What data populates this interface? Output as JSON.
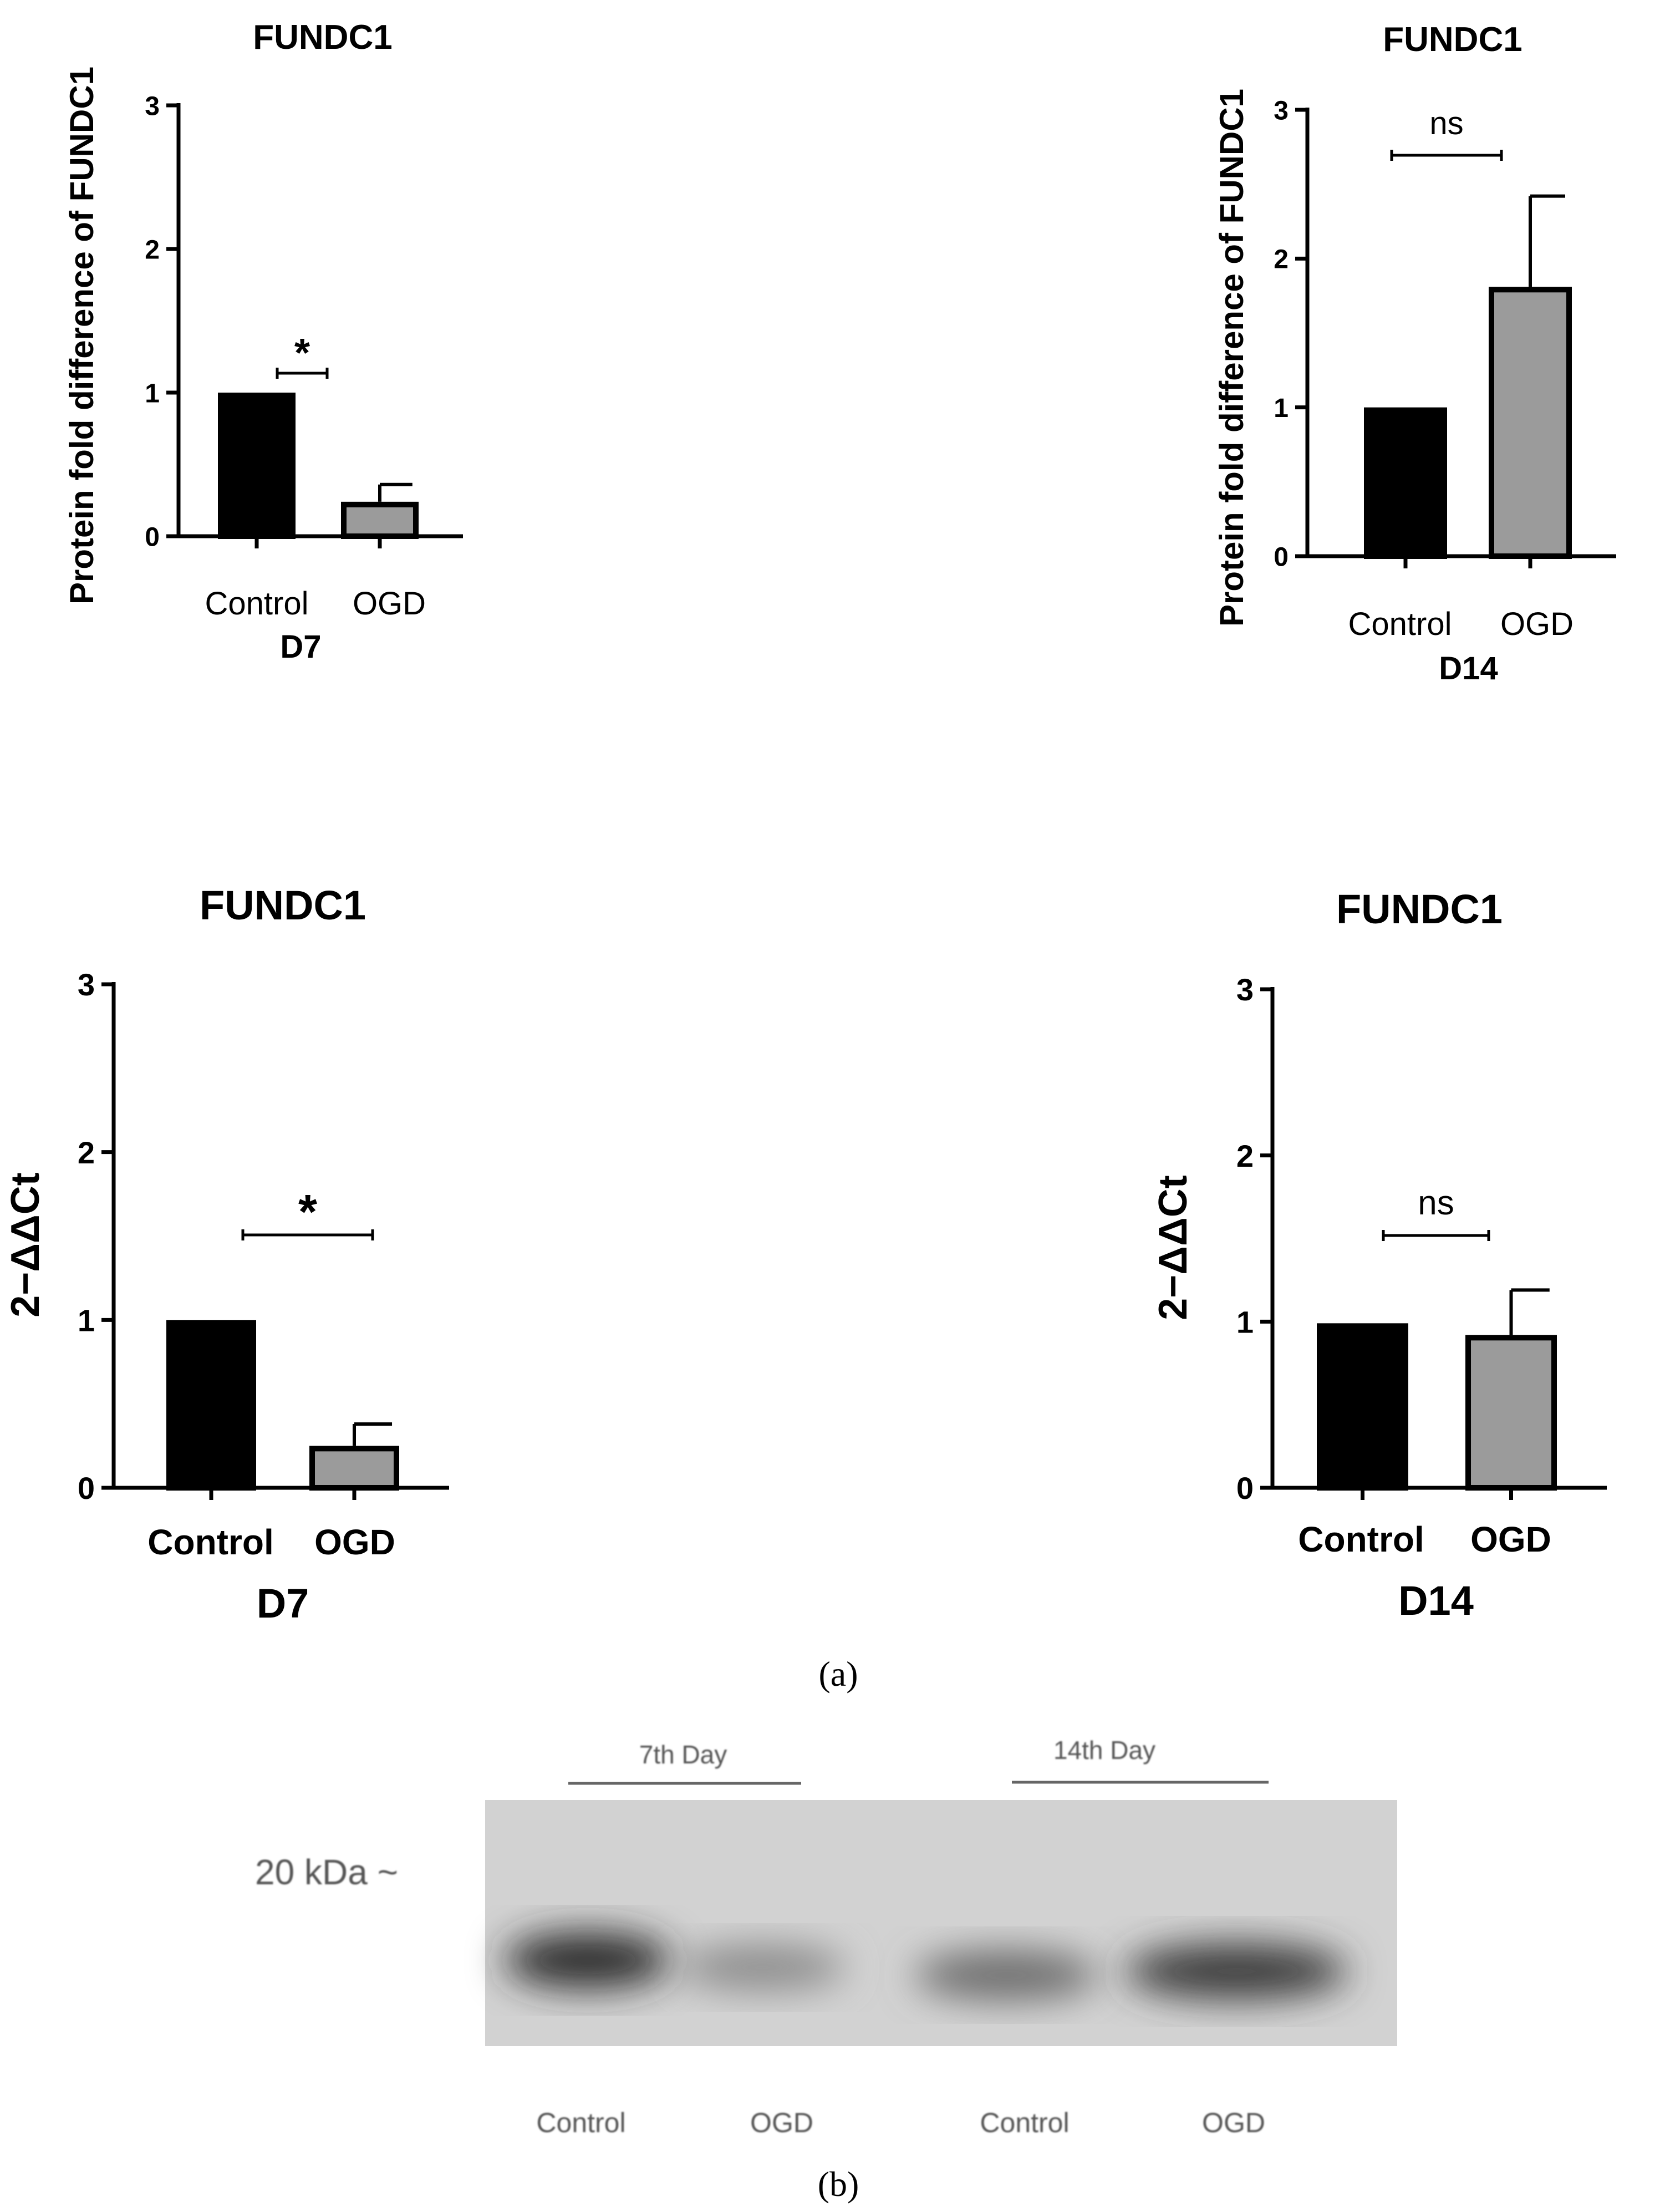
{
  "chart_data": [
    {
      "type": "bar",
      "title": "FUNDC1",
      "ylabel": "Protein fold difference of FUNDC1",
      "xlabel": "D7",
      "categories": [
        "Control",
        "OGD"
      ],
      "values": [
        1.0,
        0.24
      ],
      "error_upper": [
        0.0,
        0.36
      ],
      "ylim": [
        0,
        3
      ],
      "yticks": [
        "0",
        "1",
        "2",
        "3"
      ],
      "bar_colors": [
        "#000000",
        "#9b9b9b"
      ],
      "significance": "*"
    },
    {
      "type": "bar",
      "title": "FUNDC1",
      "ylabel": "Protein fold difference of FUNDC1",
      "xlabel": "D14",
      "categories": [
        "Control",
        "OGD"
      ],
      "values": [
        1.0,
        1.81
      ],
      "error_upper": [
        0.0,
        2.42
      ],
      "ylim": [
        0,
        3
      ],
      "yticks": [
        "0",
        "1",
        "2",
        "3"
      ],
      "bar_colors": [
        "#000000",
        "#9b9b9b"
      ],
      "significance": "ns"
    },
    {
      "type": "bar",
      "title": "FUNDC1",
      "ylabel": "2−ΔΔCt",
      "xlabel": "D7",
      "categories": [
        "Control",
        "OGD"
      ],
      "values": [
        1.0,
        0.25
      ],
      "error_upper": [
        0.0,
        0.38
      ],
      "ylim": [
        0,
        3
      ],
      "yticks": [
        "0",
        "1",
        "2",
        "3"
      ],
      "bar_colors": [
        "#000000",
        "#9b9b9b"
      ],
      "significance": "*"
    },
    {
      "type": "bar",
      "title": "FUNDC1",
      "ylabel": "2−ΔΔCt",
      "xlabel": "D14",
      "categories": [
        "Control",
        "OGD"
      ],
      "values": [
        0.99,
        0.92
      ],
      "error_upper": [
        0.0,
        1.19
      ],
      "ylim": [
        0,
        3
      ],
      "yticks": [
        "0",
        "1",
        "2",
        "3"
      ],
      "bar_colors": [
        "#000000",
        "#9b9b9b"
      ],
      "significance": "ns"
    }
  ],
  "panel_a_label": "(a)",
  "panel_b_label": "(b)",
  "blot": {
    "marker_label": "20 kDa ~",
    "group_labels": [
      "7th Day",
      "14th Day"
    ],
    "lane_labels": [
      "Control",
      "OGD",
      "Control",
      "OGD"
    ]
  }
}
